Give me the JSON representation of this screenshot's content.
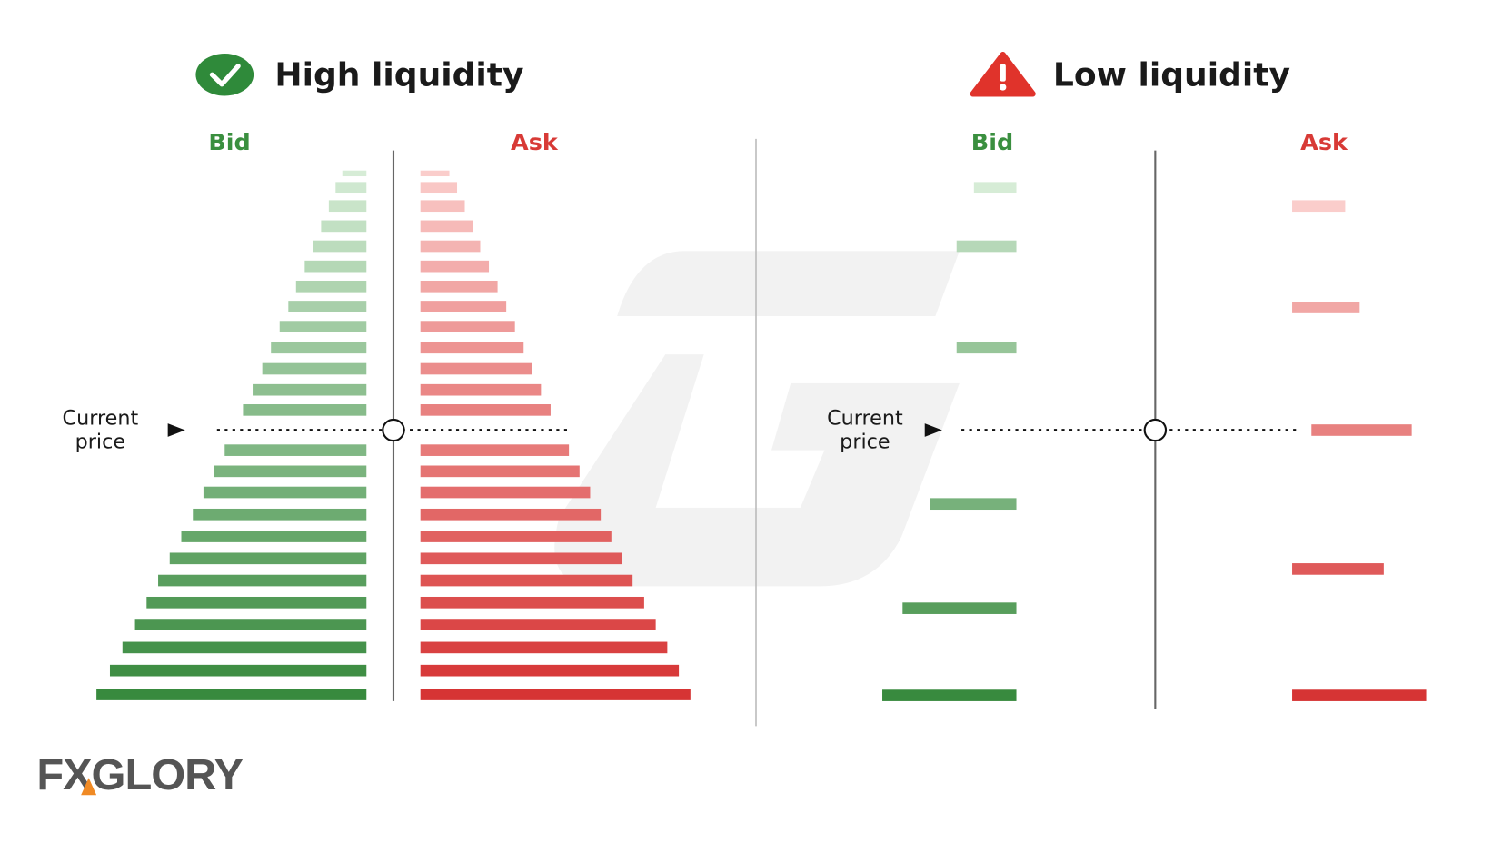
{
  "panels": [
    {
      "title": "High liquidity",
      "bid_label": "Bid",
      "ask_label": "Ask",
      "current_price": [
        "Current",
        "price"
      ]
    },
    {
      "title": "Low liquidity",
      "bid_label": "Bid",
      "ask_label": "Ask",
      "current_price": [
        "Current",
        "price"
      ]
    }
  ],
  "logo": "FXGLORY"
}
